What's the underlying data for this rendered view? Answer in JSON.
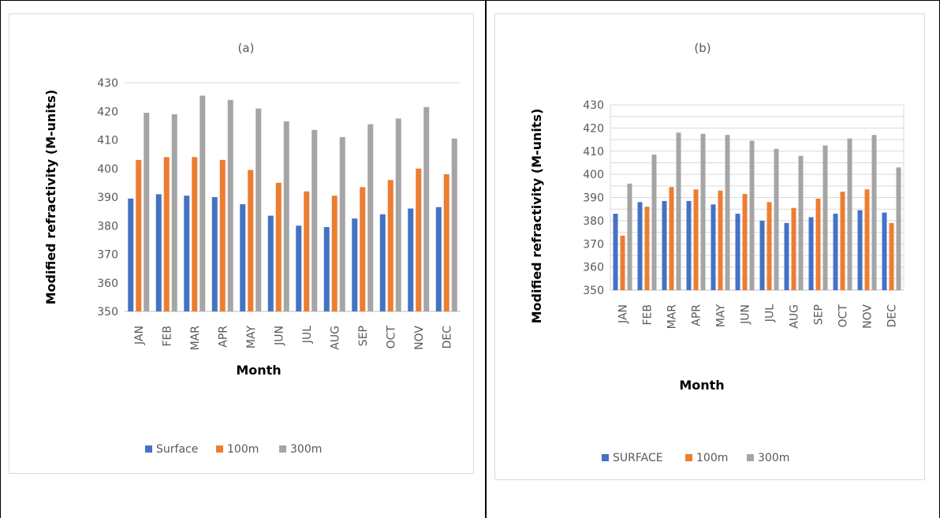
{
  "colors": {
    "surface": "#4472c4",
    "m100": "#ed7d31",
    "m300": "#a5a5a5",
    "grid": "#d9d9d9",
    "axis_text": "#595959"
  },
  "chart_data": [
    {
      "type": "bar",
      "title": "(a)",
      "xlabel": "Month",
      "ylabel": "Modified refractivity (M-units)",
      "ylim": [
        350,
        430
      ],
      "yticks": [
        350,
        360,
        370,
        380,
        390,
        400,
        410,
        420,
        430
      ],
      "grid": false,
      "legend": "bottom",
      "categories": [
        "JAN",
        "FEB",
        "MAR",
        "APR",
        "MAY",
        "JUN",
        "JUL",
        "AUG",
        "SEP",
        "OCT",
        "NOV",
        "DEC"
      ],
      "series": [
        {
          "name": "Surface",
          "values": [
            389.5,
            391,
            390.5,
            390,
            387.5,
            383.5,
            380,
            379.5,
            382.5,
            384,
            386,
            386.5
          ]
        },
        {
          "name": "100m",
          "values": [
            403,
            404,
            404,
            403,
            399.5,
            395,
            392,
            390.5,
            393.5,
            396,
            400,
            398
          ]
        },
        {
          "name": "300m",
          "values": [
            419.5,
            419,
            425.5,
            424,
            421,
            416.5,
            413.5,
            411,
            415.5,
            417.5,
            421.5,
            410.5
          ]
        }
      ]
    },
    {
      "type": "bar",
      "title": "(b)",
      "xlabel": "Month",
      "ylabel": "Modified refractivity (M-units)",
      "ylim": [
        350,
        430
      ],
      "yticks": [
        350,
        355,
        360,
        365,
        370,
        375,
        380,
        385,
        390,
        395,
        400,
        405,
        410,
        415,
        420,
        425,
        430
      ],
      "ytick_labels": [
        "350",
        "",
        "360",
        "",
        "370",
        "",
        "380",
        "",
        "390",
        "",
        "400",
        "",
        "410",
        "",
        "420",
        "",
        "430"
      ],
      "grid": true,
      "legend": "bottom",
      "categories": [
        "JAN",
        "FEB",
        "MAR",
        "APR",
        "MAY",
        "JUN",
        "JUL",
        "AUG",
        "SEP",
        "OCT",
        "NOV",
        "DEC"
      ],
      "series": [
        {
          "name": "SURFACE",
          "values": [
            383,
            388,
            388.5,
            388.5,
            387,
            383,
            380,
            379,
            381.5,
            383,
            384.5,
            383.5
          ]
        },
        {
          "name": "100m",
          "values": [
            373.5,
            386,
            394.5,
            393.5,
            393,
            391.5,
            388,
            385.5,
            389.5,
            392.5,
            393.5,
            379
          ]
        },
        {
          "name": "300m",
          "values": [
            396,
            408.5,
            418,
            417.5,
            417,
            414.5,
            411,
            408,
            412.5,
            415.5,
            417,
            403
          ]
        }
      ]
    }
  ]
}
